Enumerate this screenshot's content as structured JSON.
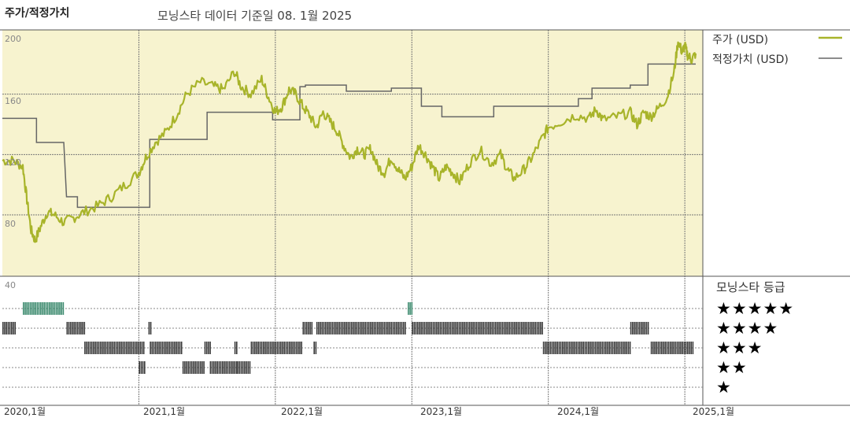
{
  "header": {
    "title": "주가/적정가치",
    "subtitle": "모닝스타 데이터 기준일 08. 1월 2025"
  },
  "legend": {
    "price_label": "주가 (USD)",
    "fair_label": "적정가치 (USD)"
  },
  "rating": {
    "title": "모닝스타 등급",
    "levels": [
      "★★★★★",
      "★★★★",
      "★★★",
      "★★",
      "★"
    ]
  },
  "colors": {
    "price": "#a8b42a",
    "fair_value": "#666666",
    "plot_bg": "#f7f3cf",
    "bar_dark": "#3a3a3a",
    "bar_green": "#3c8a6e",
    "grid": "#555555"
  },
  "chart_data": {
    "type": "line",
    "title": "주가/적정가치",
    "x_ticks": [
      "2020,1월",
      "2021,1월",
      "2022,1월",
      "2023,1월",
      "2024,1월",
      "2025,1월"
    ],
    "y_ticks": [
      40,
      80,
      120,
      160,
      200
    ],
    "ylim": [
      40,
      205
    ],
    "xlim": [
      2020.0,
      2025.08
    ],
    "grid": true,
    "legend_position": "right",
    "series": [
      {
        "name": "주가 (USD)",
        "points": [
          [
            2020.0,
            116
          ],
          [
            2020.08,
            116
          ],
          [
            2020.15,
            112
          ],
          [
            2020.18,
            90
          ],
          [
            2020.21,
            70
          ],
          [
            2020.24,
            63
          ],
          [
            2020.28,
            72
          ],
          [
            2020.33,
            82
          ],
          [
            2020.38,
            80
          ],
          [
            2020.45,
            75
          ],
          [
            2020.52,
            78
          ],
          [
            2020.6,
            82
          ],
          [
            2020.7,
            86
          ],
          [
            2020.8,
            92
          ],
          [
            2020.9,
            100
          ],
          [
            2021.0,
            108
          ],
          [
            2021.05,
            118
          ],
          [
            2021.12,
            128
          ],
          [
            2021.2,
            135
          ],
          [
            2021.28,
            147
          ],
          [
            2021.35,
            160
          ],
          [
            2021.45,
            168
          ],
          [
            2021.55,
            165
          ],
          [
            2021.62,
            163
          ],
          [
            2021.7,
            175
          ],
          [
            2021.75,
            165
          ],
          [
            2021.82,
            160
          ],
          [
            2021.9,
            170
          ],
          [
            2021.95,
            158
          ],
          [
            2022.0,
            148
          ],
          [
            2022.05,
            152
          ],
          [
            2022.1,
            163
          ],
          [
            2022.15,
            160
          ],
          [
            2022.2,
            152
          ],
          [
            2022.25,
            146
          ],
          [
            2022.3,
            138
          ],
          [
            2022.35,
            148
          ],
          [
            2022.4,
            142
          ],
          [
            2022.45,
            136
          ],
          [
            2022.5,
            126
          ],
          [
            2022.55,
            118
          ],
          [
            2022.6,
            124
          ],
          [
            2022.65,
            120
          ],
          [
            2022.7,
            124
          ],
          [
            2022.75,
            112
          ],
          [
            2022.8,
            108
          ],
          [
            2022.85,
            118
          ],
          [
            2022.9,
            110
          ],
          [
            2022.95,
            104
          ],
          [
            2023.0,
            112
          ],
          [
            2023.05,
            126
          ],
          [
            2023.1,
            120
          ],
          [
            2023.15,
            112
          ],
          [
            2023.2,
            104
          ],
          [
            2023.25,
            112
          ],
          [
            2023.3,
            108
          ],
          [
            2023.35,
            102
          ],
          [
            2023.42,
            114
          ],
          [
            2023.5,
            123
          ],
          [
            2023.58,
            114
          ],
          [
            2023.65,
            120
          ],
          [
            2023.7,
            110
          ],
          [
            2023.75,
            104
          ],
          [
            2023.82,
            110
          ],
          [
            2023.88,
            118
          ],
          [
            2023.95,
            130
          ],
          [
            2024.0,
            138
          ],
          [
            2024.1,
            142
          ],
          [
            2024.2,
            146
          ],
          [
            2024.3,
            144
          ],
          [
            2024.35,
            150
          ],
          [
            2024.4,
            143
          ],
          [
            2024.5,
            145
          ],
          [
            2024.6,
            148
          ],
          [
            2024.65,
            140
          ],
          [
            2024.7,
            148
          ],
          [
            2024.75,
            145
          ],
          [
            2024.8,
            150
          ],
          [
            2024.87,
            158
          ],
          [
            2024.92,
            174
          ],
          [
            2024.95,
            195
          ],
          [
            2024.98,
            188
          ],
          [
            2025.0,
            192
          ],
          [
            2025.02,
            186
          ],
          [
            2025.05,
            183
          ],
          [
            2025.08,
            187
          ]
        ]
      },
      {
        "name": "적정가치 (USD)",
        "steps": [
          [
            2020.0,
            2020.25,
            144
          ],
          [
            2020.25,
            2020.45,
            128
          ],
          [
            2020.47,
            2020.55,
            92
          ],
          [
            2020.55,
            2021.08,
            85
          ],
          [
            2021.08,
            2021.5,
            130
          ],
          [
            2021.5,
            2021.98,
            148
          ],
          [
            2021.98,
            2022.18,
            143
          ],
          [
            2022.18,
            2022.22,
            165
          ],
          [
            2022.22,
            2022.52,
            166
          ],
          [
            2022.52,
            2022.85,
            162
          ],
          [
            2022.85,
            2023.07,
            164
          ],
          [
            2023.07,
            2023.22,
            152
          ],
          [
            2023.22,
            2023.6,
            145
          ],
          [
            2023.6,
            2024.22,
            152
          ],
          [
            2024.22,
            2024.32,
            157
          ],
          [
            2024.32,
            2024.6,
            164
          ],
          [
            2024.6,
            2024.73,
            166
          ],
          [
            2024.73,
            2025.0,
            180
          ],
          [
            2025.0,
            2025.08,
            180
          ]
        ]
      }
    ],
    "rating_bands": [
      {
        "stars": 5,
        "periods": [
          [
            2020.15,
            2020.45,
            "green"
          ],
          [
            2022.97,
            2023.0,
            "green"
          ]
        ]
      },
      {
        "stars": 4,
        "periods": [
          [
            2020.0,
            2020.1,
            "dark"
          ],
          [
            2020.47,
            2020.6,
            "dark"
          ],
          [
            2021.07,
            2021.09,
            "dark"
          ],
          [
            2022.2,
            2022.27,
            "dark"
          ],
          [
            2022.3,
            2022.95,
            "dark"
          ],
          [
            2023.0,
            2023.96,
            "dark"
          ],
          [
            2024.6,
            2024.73,
            "dark"
          ]
        ]
      },
      {
        "stars": 3,
        "periods": [
          [
            2020.6,
            2021.04,
            "dark"
          ],
          [
            2021.08,
            2021.32,
            "dark"
          ],
          [
            2021.48,
            2021.52,
            "dark"
          ],
          [
            2021.7,
            2021.72,
            "dark"
          ],
          [
            2021.82,
            2022.2,
            "dark"
          ],
          [
            2022.28,
            2022.3,
            "dark"
          ],
          [
            2023.96,
            2024.6,
            "dark"
          ],
          [
            2024.75,
            2025.06,
            "dark"
          ]
        ]
      },
      {
        "stars": 2,
        "periods": [
          [
            2021.0,
            2021.05,
            "dark"
          ],
          [
            2021.32,
            2021.48,
            "dark"
          ],
          [
            2021.52,
            2021.72,
            "dark"
          ],
          [
            2021.72,
            2021.82,
            "dark"
          ]
        ]
      },
      {
        "stars": 1,
        "periods": []
      }
    ]
  }
}
